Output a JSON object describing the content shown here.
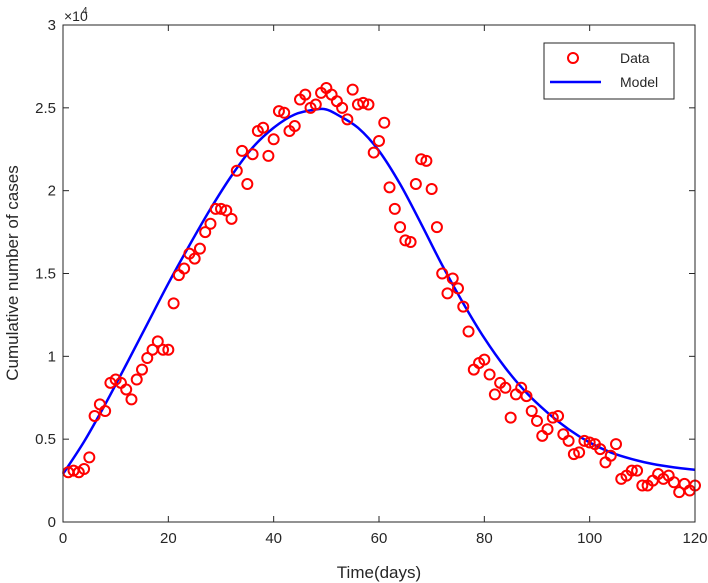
{
  "chart_data": {
    "type": "scatter",
    "title": "",
    "xlabel": "Time(days)",
    "ylabel": "Cumulative number of cases",
    "xlim": [
      0,
      120
    ],
    "ylim": [
      0,
      30000
    ],
    "x_ticks": [
      0,
      20,
      40,
      60,
      80,
      100,
      120
    ],
    "x_tick_labels": [
      "0",
      "20",
      "40",
      "60",
      "80",
      "100",
      "120"
    ],
    "y_ticks": [
      0,
      5000,
      10000,
      15000,
      20000,
      25000,
      30000
    ],
    "y_tick_labels": [
      "0",
      "0.5",
      "1",
      "1.5",
      "2",
      "2.5",
      "3"
    ],
    "y_exponent": {
      "base": "×10",
      "power": "4"
    },
    "grid": false,
    "legend_position": "top-right",
    "colors": {
      "data": "#ff0000",
      "model": "#0000ff",
      "axis": "#262626"
    },
    "series": [
      {
        "name": "Data",
        "style": "markers",
        "x": [
          1,
          2,
          3,
          4,
          5,
          6,
          7,
          8,
          9,
          10,
          11,
          12,
          13,
          14,
          15,
          16,
          17,
          18,
          19,
          20,
          21,
          22,
          23,
          24,
          25,
          26,
          27,
          28,
          29,
          30,
          31,
          32,
          33,
          34,
          35,
          36,
          37,
          38,
          39,
          40,
          41,
          42,
          43,
          44,
          45,
          46,
          47,
          48,
          49,
          50,
          51,
          52,
          53,
          54,
          55,
          56,
          57,
          58,
          59,
          60,
          61,
          62,
          63,
          64,
          65,
          66,
          67,
          68,
          69,
          70,
          71,
          72,
          73,
          74,
          75,
          76,
          77,
          78,
          79,
          80,
          81,
          82,
          83,
          84,
          85,
          86,
          87,
          88,
          89,
          90,
          91,
          92,
          93,
          94,
          95,
          96,
          97,
          98,
          99,
          100,
          101,
          102,
          103,
          104,
          105,
          106,
          107,
          108,
          109,
          110,
          111,
          112,
          113,
          114,
          115,
          116,
          117,
          118,
          119,
          120
        ],
        "y": [
          3000,
          3100,
          3000,
          3200,
          3900,
          6400,
          7100,
          6700,
          8400,
          8600,
          8400,
          8000,
          7400,
          8600,
          9200,
          9900,
          10400,
          10900,
          10400,
          10400,
          13200,
          14900,
          15300,
          16200,
          15900,
          16500,
          17500,
          18000,
          18900,
          18900,
          18800,
          18300,
          21200,
          22400,
          20400,
          22200,
          23600,
          23800,
          22100,
          23100,
          24800,
          24700,
          23600,
          23900,
          25500,
          25800,
          25000,
          25200,
          25900,
          26200,
          25800,
          25400,
          25000,
          24300,
          26100,
          25200,
          25300,
          25200,
          22300,
          23000,
          24100,
          20200,
          18900,
          17800,
          17000,
          16900,
          20400,
          21900,
          21800,
          20100,
          17800,
          15000,
          13800,
          14700,
          14100,
          13000,
          11500,
          9200,
          9600,
          9800,
          8900,
          7700,
          8400,
          8100,
          6300,
          7700,
          8100,
          7600,
          6700,
          6100,
          5200,
          5600,
          6300,
          6400,
          5300,
          4900,
          4100,
          4200,
          4900,
          4800,
          4700,
          4400,
          3600,
          4000,
          4700,
          2600,
          2800,
          3100,
          3100,
          2200,
          2200,
          2500,
          2900,
          2600,
          2800,
          2400,
          1800,
          2300,
          1900,
          2200
        ]
      },
      {
        "name": "Model",
        "style": "line",
        "x": [
          0,
          4,
          8,
          12,
          16,
          20,
          24,
          28,
          32,
          36,
          40,
          44,
          48,
          50,
          52,
          56,
          60,
          64,
          68,
          72,
          76,
          80,
          84,
          88,
          92,
          96,
          100,
          104,
          108,
          112,
          116,
          120
        ],
        "y": [
          2900,
          4850,
          7100,
          9500,
          11950,
          14400,
          16700,
          18900,
          20900,
          22600,
          23800,
          24600,
          24900,
          24900,
          24600,
          23800,
          22400,
          20400,
          18000,
          15500,
          13200,
          11100,
          9300,
          7800,
          6600,
          5600,
          4800,
          4200,
          3800,
          3500,
          3300,
          3150
        ]
      }
    ]
  }
}
